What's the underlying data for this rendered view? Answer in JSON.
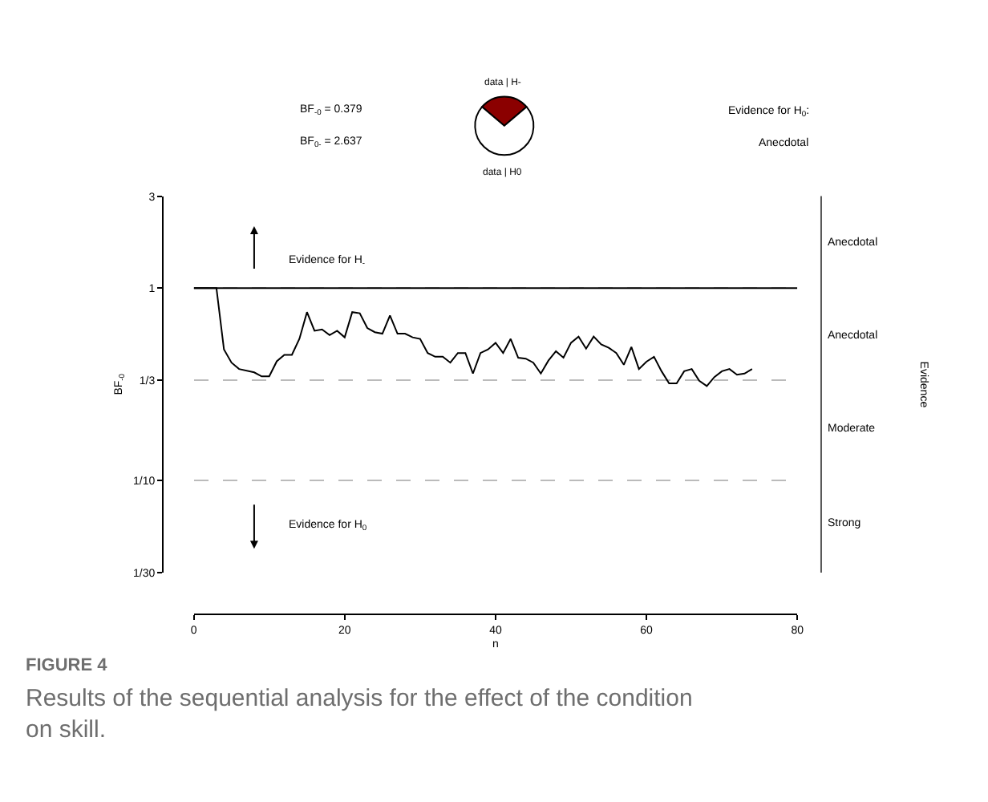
{
  "chart_data": [
    {
      "type": "line",
      "title": "FIGURE 4",
      "subtitle": "Results of the sequential analysis for the effect of the condition on skill.",
      "xlabel": "n",
      "ylabel": "BF$_{-0}$",
      "y2label": "Evidence",
      "series": [
        {
          "color": "#000000",
          "x": [
            0,
            3,
            4,
            5,
            6,
            8,
            9,
            10,
            11,
            12,
            13,
            14,
            15,
            16,
            17,
            18,
            19,
            20,
            21,
            22,
            23,
            24,
            25,
            26,
            27,
            28,
            29,
            30,
            31,
            32,
            33,
            34,
            35,
            36,
            37,
            38,
            39,
            40,
            41,
            42,
            43,
            44,
            45,
            46,
            47,
            48,
            49,
            50,
            51,
            52,
            53,
            54,
            55,
            56,
            57,
            58,
            59,
            60,
            61,
            62,
            63,
            64,
            65,
            66,
            67,
            68,
            69,
            70,
            71,
            72,
            73,
            74
          ],
          "values": [
            1,
            1,
            0.48,
            0.41,
            0.38,
            0.365,
            0.348,
            0.348,
            0.417,
            0.45,
            0.45,
            0.545,
            0.75,
            0.6,
            0.61,
            0.57,
            0.6,
            0.555,
            0.75,
            0.74,
            0.62,
            0.59,
            0.58,
            0.72,
            0.58,
            0.58,
            0.555,
            0.545,
            0.46,
            0.44,
            0.44,
            0.41,
            0.46,
            0.46,
            0.36,
            0.46,
            0.48,
            0.52,
            0.46,
            0.545,
            0.435,
            0.43,
            0.41,
            0.36,
            0.42,
            0.47,
            0.435,
            0.52,
            0.56,
            0.485,
            0.56,
            0.51,
            0.49,
            0.46,
            0.4,
            0.495,
            0.38,
            0.415,
            0.44,
            0.37,
            0.32,
            0.32,
            0.37,
            0.38,
            0.33,
            0.31,
            0.345,
            0.37,
            0.38,
            0.355,
            0.36,
            0.38
          ]
        }
      ],
      "xlim": [
        0,
        80
      ],
      "xticks": [
        0,
        20,
        40,
        60,
        80
      ],
      "ylim": [
        0.033333,
        3
      ],
      "log": "y",
      "yticks": [
        {
          "value": 0.033333,
          "label": "1/30"
        },
        {
          "value": 0.1,
          "label": "1/10"
        },
        {
          "value": 0.33333,
          "label": "1/3"
        },
        1,
        3
      ],
      "grid": "y",
      "line_style": "solid",
      "marker": "none",
      "ref_lines": [
        {
          "axis": "y",
          "value": 1,
          "color": "#000000",
          "line_style": "solid"
        }
      ],
      "annotations": [
        "BF$_{-0}$ = 0.379",
        "BF$_{0-}$ = 2.637",
        "Evidence for H$_{0}$:",
        "Anecdotal",
        "Evidence for H$_{-}$",
        "Evidence for H$_{0}$",
        "Anecdotal",
        "Anecdotal",
        "Moderate",
        "Strong"
      ]
    },
    {
      "type": "pie",
      "categories": [
        "data | H-",
        "data | H0"
      ],
      "values": [
        27.5,
        72.5
      ],
      "colors": [
        "#8b0000",
        "#ffffff"
      ]
    }
  ]
}
